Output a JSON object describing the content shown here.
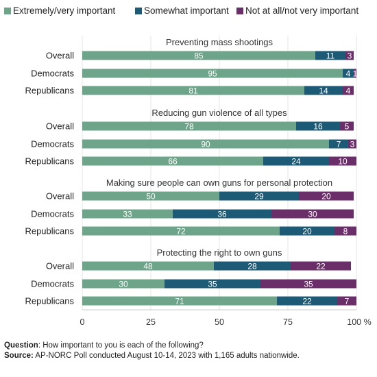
{
  "chart_data": {
    "type": "bar",
    "orientation": "horizontal",
    "stacked": true,
    "xlim": [
      0,
      100
    ],
    "x_ticks": [
      "0",
      "25",
      "50",
      "75",
      "100 %"
    ],
    "x_tick_values": [
      0,
      25,
      50,
      75,
      100
    ],
    "legend_position": "top",
    "legend": [
      {
        "name": "Extremely/very important",
        "color": "#6ea58a"
      },
      {
        "name": "Somewhat important",
        "color": "#1c5a76"
      },
      {
        "name": "Not at all/not very important",
        "color": "#6a2f68"
      }
    ],
    "groups": [
      {
        "title": "Preventing mass shootings",
        "rows": [
          {
            "label": "Overall",
            "values": [
              85,
              11,
              3
            ]
          },
          {
            "label": "Democrats",
            "values": [
              95,
              4,
              1
            ]
          },
          {
            "label": "Republicans",
            "values": [
              81,
              14,
              4
            ]
          }
        ]
      },
      {
        "title": "Reducing gun violence of all types",
        "rows": [
          {
            "label": "Overall",
            "values": [
              78,
              16,
              5
            ]
          },
          {
            "label": "Democrats",
            "values": [
              90,
              7,
              3
            ]
          },
          {
            "label": "Republicans",
            "values": [
              66,
              24,
              10
            ]
          }
        ]
      },
      {
        "title": "Making sure people can own guns for personal protection",
        "rows": [
          {
            "label": "Overall",
            "values": [
              50,
              29,
              20
            ]
          },
          {
            "label": "Democrats",
            "values": [
              33,
              36,
              30
            ]
          },
          {
            "label": "Republicans",
            "values": [
              72,
              20,
              8
            ]
          }
        ]
      },
      {
        "title": "Protecting the right to own guns",
        "rows": [
          {
            "label": "Overall",
            "values": [
              48,
              28,
              22
            ]
          },
          {
            "label": "Democrats",
            "values": [
              30,
              35,
              35
            ]
          },
          {
            "label": "Republicans",
            "values": [
              71,
              22,
              7
            ]
          }
        ]
      }
    ]
  },
  "notes": {
    "question_label": "Question",
    "question_text": ": How important to you is each of the following?",
    "source_label": "Source:",
    "source_text": " AP-NORC Poll conducted August 10-14, 2023 with 1,165 adults nationwide."
  }
}
